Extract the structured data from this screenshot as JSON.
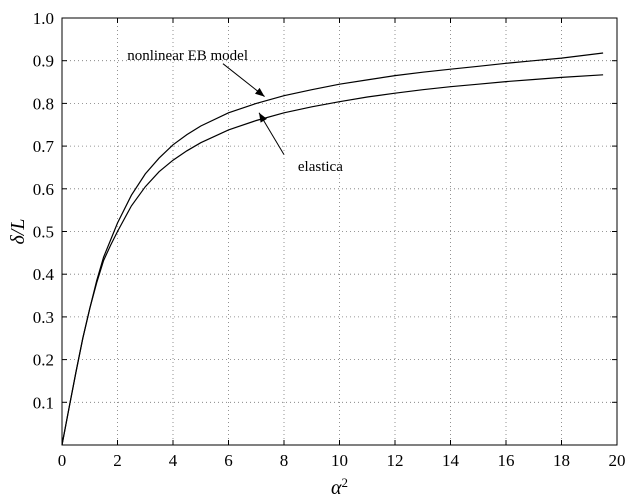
{
  "chart_data": {
    "type": "line",
    "title": "",
    "xlabel": "α",
    "xlabel_sup": "2",
    "ylabel": "δ/L",
    "xlim": [
      0,
      20
    ],
    "ylim": [
      0,
      1.0
    ],
    "xticks": [
      0,
      2,
      4,
      6,
      8,
      10,
      12,
      14,
      16,
      18,
      20
    ],
    "yticks": [
      0.1,
      0.2,
      0.3,
      0.4,
      0.5,
      0.6,
      0.7,
      0.8,
      0.9,
      1.0
    ],
    "xtick_labels": [
      "0",
      "2",
      "4",
      "6",
      "8",
      "10",
      "12",
      "14",
      "16",
      "18",
      "20"
    ],
    "ytick_labels": [
      "0.1",
      "0.2",
      "0.3",
      "0.4",
      "0.5",
      "0.6",
      "0.7",
      "0.8",
      "0.9",
      "1.0"
    ],
    "grid": true,
    "grid_style": "dotted",
    "line_color": "#000000",
    "series": [
      {
        "key": "nonlinear-eb",
        "x": [
          0,
          0.25,
          0.5,
          0.75,
          1.0,
          1.25,
          1.5,
          1.75,
          2.0,
          2.5,
          3.0,
          3.5,
          4.0,
          4.5,
          5.0,
          6.0,
          7.0,
          8.0,
          9.0,
          10.0,
          11.0,
          12.0,
          13.0,
          14.0,
          15.0,
          16.0,
          17.0,
          18.0,
          19.5
        ],
        "y": [
          0,
          0.085,
          0.17,
          0.25,
          0.32,
          0.385,
          0.44,
          0.48,
          0.52,
          0.585,
          0.635,
          0.672,
          0.703,
          0.727,
          0.747,
          0.778,
          0.8,
          0.818,
          0.832,
          0.845,
          0.855,
          0.865,
          0.873,
          0.88,
          0.887,
          0.894,
          0.9,
          0.906,
          0.918
        ]
      },
      {
        "key": "elastica",
        "x": [
          0,
          0.25,
          0.5,
          0.75,
          1.0,
          1.25,
          1.5,
          1.75,
          2.0,
          2.5,
          3.0,
          3.5,
          4.0,
          4.5,
          5.0,
          6.0,
          7.0,
          8.0,
          9.0,
          10.0,
          11.0,
          12.0,
          13.0,
          14.0,
          15.0,
          16.0,
          17.0,
          18.0,
          19.5
        ],
        "y": [
          0,
          0.085,
          0.17,
          0.25,
          0.32,
          0.38,
          0.432,
          0.468,
          0.5,
          0.56,
          0.605,
          0.64,
          0.667,
          0.689,
          0.708,
          0.738,
          0.76,
          0.778,
          0.792,
          0.804,
          0.815,
          0.824,
          0.832,
          0.839,
          0.845,
          0.851,
          0.856,
          0.861,
          0.867
        ]
      }
    ],
    "annotations": [
      {
        "key": "nonlinear-eb",
        "text": "nonlinear EB model",
        "text_at": [
          2.35,
          0.902
        ],
        "arrow_from": [
          5.8,
          0.893
        ],
        "arrow_to": [
          7.3,
          0.816
        ]
      },
      {
        "key": "elastica",
        "text": "elastica",
        "text_at": [
          8.5,
          0.642
        ],
        "arrow_from": [
          8.0,
          0.68
        ],
        "arrow_to": [
          7.1,
          0.778
        ]
      }
    ]
  }
}
